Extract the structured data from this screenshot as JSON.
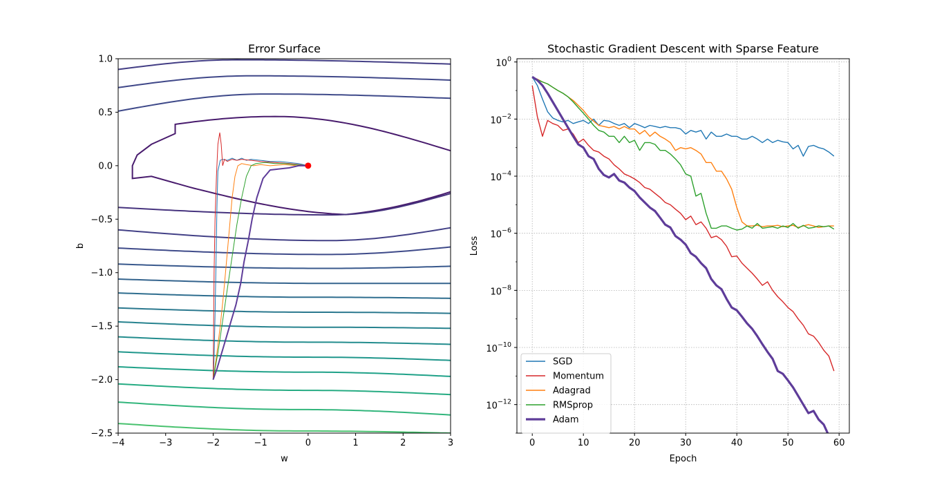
{
  "chart_data": [
    {
      "type": "contour",
      "title": "Error Surface",
      "xlabel": "w",
      "ylabel": "b",
      "xlim": [
        -4,
        3
      ],
      "ylim": [
        -2.5,
        1.0
      ],
      "xticks": [
        -4,
        -3,
        -2,
        -1,
        0,
        1,
        2,
        3
      ],
      "yticks": [
        -2.5,
        -2.0,
        -1.5,
        -1.0,
        -0.5,
        0.0,
        0.5,
        1.0
      ],
      "xtick_labels": [
        "−4",
        "−3",
        "−2",
        "−1",
        "0",
        "1",
        "2",
        "3"
      ],
      "ytick_labels": [
        "−2.5",
        "−2.0",
        "−1.5",
        "−1.0",
        "−0.5",
        "0.0",
        "0.5",
        "1.0"
      ],
      "minimum": {
        "w": 0.0,
        "b": 0.0,
        "color": "#ff0000"
      },
      "contours_upper": [
        {
          "b_left": 0.9,
          "b_peak": 0.99,
          "b_right": 0.95,
          "color": "#433e85"
        },
        {
          "b_left": 0.73,
          "b_peak": 0.84,
          "b_right": 0.8,
          "color": "#3f4788"
        },
        {
          "b_left": 0.51,
          "b_peak": 0.67,
          "b_right": 0.63,
          "color": "#3e4989"
        },
        {
          "b_left": 0.1,
          "b_peak": 0.46,
          "b_right": 0.14,
          "color": "#481b6d"
        }
      ],
      "contours_lower": [
        {
          "b_left": -0.39,
          "b_min": -0.46,
          "b_right": -0.26,
          "color": "#46337e"
        },
        {
          "b_left": -0.6,
          "b_min": -0.7,
          "b_right": -0.58,
          "color": "#424086"
        },
        {
          "b_left": -0.77,
          "b_min": -0.83,
          "b_right": -0.76,
          "color": "#3e4a89"
        },
        {
          "b_left": -0.92,
          "b_min": -0.96,
          "b_right": -0.94,
          "color": "#38588c"
        },
        {
          "b_left": -1.06,
          "b_min": -1.1,
          "b_right": -1.1,
          "color": "#33638d"
        },
        {
          "b_left": -1.19,
          "b_min": -1.23,
          "b_right": -1.24,
          "color": "#2e6d8e"
        },
        {
          "b_left": -1.33,
          "b_min": -1.37,
          "b_right": -1.38,
          "color": "#2a788e"
        },
        {
          "b_left": -1.46,
          "b_min": -1.51,
          "b_right": -1.52,
          "color": "#26828e"
        },
        {
          "b_left": -1.6,
          "b_min": -1.65,
          "b_right": -1.67,
          "color": "#228c8d"
        },
        {
          "b_left": -1.74,
          "b_min": -1.79,
          "b_right": -1.82,
          "color": "#1f968b"
        },
        {
          "b_left": -1.88,
          "b_min": -1.93,
          "b_right": -1.97,
          "color": "#1fa188"
        },
        {
          "b_left": -2.04,
          "b_min": -2.1,
          "b_right": -2.14,
          "color": "#25ab82"
        },
        {
          "b_left": -2.21,
          "b_min": -2.28,
          "b_right": -2.33,
          "color": "#31b57b"
        },
        {
          "b_left": -2.41,
          "b_min": -2.48,
          "b_right": -2.5,
          "color": "#48c16e"
        }
      ],
      "paths": [
        {
          "name": "SGD",
          "color": "#1f77b4",
          "points": [
            [
              -2.0,
              -2.0
            ],
            [
              -1.98,
              -1.8
            ],
            [
              -1.96,
              -1.4
            ],
            [
              -1.94,
              -0.9
            ],
            [
              -1.92,
              -0.4
            ],
            [
              -1.9,
              -0.05
            ],
            [
              -1.85,
              0.05
            ],
            [
              -1.8,
              0.06
            ],
            [
              -1.7,
              0.05
            ],
            [
              -1.6,
              0.07
            ],
            [
              -1.5,
              0.05
            ],
            [
              -1.4,
              0.07
            ],
            [
              -1.3,
              0.05
            ],
            [
              -1.2,
              0.06
            ],
            [
              -1.0,
              0.05
            ],
            [
              -0.8,
              0.04
            ],
            [
              -0.6,
              0.04
            ],
            [
              -0.4,
              0.03
            ],
            [
              -0.2,
              0.02
            ],
            [
              0.0,
              0.0
            ]
          ]
        },
        {
          "name": "Momentum",
          "color": "#d62728",
          "points": [
            [
              -2.0,
              -2.0
            ],
            [
              -1.99,
              -1.5
            ],
            [
              -1.98,
              -1.0
            ],
            [
              -1.96,
              -0.5
            ],
            [
              -1.93,
              -0.1
            ],
            [
              -1.9,
              0.2
            ],
            [
              -1.86,
              0.31
            ],
            [
              -1.83,
              0.2
            ],
            [
              -1.8,
              0.0
            ],
            [
              -1.76,
              0.06
            ],
            [
              -1.7,
              0.04
            ],
            [
              -1.6,
              0.06
            ],
            [
              -1.5,
              0.05
            ],
            [
              -1.4,
              0.06
            ],
            [
              -1.2,
              0.05
            ],
            [
              -1.0,
              0.04
            ],
            [
              -0.7,
              0.03
            ],
            [
              -0.4,
              0.02
            ],
            [
              -0.2,
              0.01
            ],
            [
              0.0,
              0.0
            ]
          ]
        },
        {
          "name": "Adagrad",
          "color": "#ff7f0e",
          "points": [
            [
              -2.0,
              -2.0
            ],
            [
              -1.92,
              -1.75
            ],
            [
              -1.85,
              -1.5
            ],
            [
              -1.78,
              -1.2
            ],
            [
              -1.72,
              -0.9
            ],
            [
              -1.66,
              -0.6
            ],
            [
              -1.6,
              -0.3
            ],
            [
              -1.54,
              -0.1
            ],
            [
              -1.48,
              0.0
            ],
            [
              -1.4,
              0.02
            ],
            [
              -1.3,
              0.01
            ],
            [
              -1.15,
              0.0
            ],
            [
              -1.0,
              0.01
            ],
            [
              -0.8,
              0.0
            ],
            [
              -0.5,
              0.01
            ],
            [
              -0.25,
              0.0
            ],
            [
              0.0,
              0.0
            ]
          ]
        },
        {
          "name": "RMSprop",
          "color": "#2ca02c",
          "points": [
            [
              -2.0,
              -2.0
            ],
            [
              -1.9,
              -1.75
            ],
            [
              -1.8,
              -1.45
            ],
            [
              -1.7,
              -1.15
            ],
            [
              -1.6,
              -0.85
            ],
            [
              -1.5,
              -0.55
            ],
            [
              -1.4,
              -0.3
            ],
            [
              -1.3,
              -0.1
            ],
            [
              -1.2,
              0.0
            ],
            [
              -1.1,
              0.02
            ],
            [
              -0.9,
              0.03
            ],
            [
              -0.7,
              0.02
            ],
            [
              -0.5,
              0.02
            ],
            [
              -0.3,
              0.01
            ],
            [
              0.0,
              0.0
            ]
          ]
        },
        {
          "name": "Adam",
          "color": "#5e3c99",
          "points": [
            [
              -2.0,
              -2.0
            ],
            [
              -1.92,
              -1.9
            ],
            [
              -1.82,
              -1.75
            ],
            [
              -1.72,
              -1.6
            ],
            [
              -1.62,
              -1.45
            ],
            [
              -1.52,
              -1.3
            ],
            [
              -1.42,
              -1.1
            ],
            [
              -1.35,
              -0.9
            ],
            [
              -1.26,
              -0.7
            ],
            [
              -1.18,
              -0.5
            ],
            [
              -1.08,
              -0.3
            ],
            [
              -0.95,
              -0.12
            ],
            [
              -0.8,
              -0.04
            ],
            [
              -0.6,
              -0.03
            ],
            [
              -0.4,
              -0.02
            ],
            [
              -0.2,
              0.0
            ],
            [
              0.0,
              0.0
            ]
          ]
        }
      ]
    },
    {
      "type": "line",
      "title": "Stochastic Gradient Descent with Sparse Feature",
      "xlabel": "Epoch",
      "ylabel": "Loss",
      "yscale": "log",
      "xlim": [
        -3,
        62
      ],
      "ylim": [
        1e-13,
        1.3
      ],
      "xticks": [
        0,
        10,
        20,
        30,
        40,
        50,
        60
      ],
      "xtick_labels": [
        "0",
        "10",
        "20",
        "30",
        "40",
        "50",
        "60"
      ],
      "ytick_exponents": [
        0,
        -2,
        -4,
        -6,
        -8,
        -10,
        -12
      ],
      "ytick_base": "10",
      "grid": true,
      "legend": "lower-left",
      "x": [
        0,
        1,
        2,
        3,
        4,
        5,
        6,
        7,
        8,
        9,
        10,
        11,
        12,
        13,
        14,
        15,
        16,
        17,
        18,
        19,
        20,
        21,
        22,
        23,
        24,
        25,
        26,
        27,
        28,
        29,
        30,
        31,
        32,
        33,
        34,
        35,
        36,
        37,
        38,
        39,
        40,
        41,
        42,
        43,
        44,
        45,
        46,
        47,
        48,
        49,
        50,
        51,
        52,
        53,
        54,
        55,
        56,
        57,
        58,
        59
      ],
      "series": [
        {
          "name": "SGD",
          "color": "#1f77b4",
          "width": 1.4,
          "values": [
            0.3,
            0.15,
            0.05,
            0.018,
            0.011,
            0.009,
            0.008,
            0.009,
            0.007,
            0.008,
            0.009,
            0.007,
            0.01,
            0.006,
            0.009,
            0.0085,
            0.007,
            0.006,
            0.007,
            0.005,
            0.007,
            0.006,
            0.005,
            0.006,
            0.0055,
            0.005,
            0.0055,
            0.005,
            0.005,
            0.0045,
            0.003,
            0.004,
            0.0035,
            0.004,
            0.002,
            0.0035,
            0.0025,
            0.0025,
            0.003,
            0.0025,
            0.0025,
            0.002,
            0.002,
            0.0025,
            0.002,
            0.0015,
            0.002,
            0.0015,
            0.0018,
            0.0016,
            0.0015,
            0.0009,
            0.0012,
            0.0005,
            0.0011,
            0.0012,
            0.001,
            0.0009,
            0.0007,
            0.0005
          ]
        },
        {
          "name": "Momentum",
          "color": "#d62728",
          "width": 1.4,
          "values": [
            0.15,
            0.012,
            0.0025,
            0.009,
            0.007,
            0.006,
            0.004,
            0.0045,
            0.003,
            0.0015,
            0.002,
            0.0012,
            0.0008,
            0.0007,
            0.0005,
            0.0004,
            0.00025,
            0.00018,
            0.00012,
            0.0001,
            8e-05,
            6e-05,
            4e-05,
            3.5e-05,
            2.5e-05,
            1.8e-05,
            1.2e-05,
            1e-05,
            7e-06,
            5e-06,
            3e-06,
            4e-06,
            2e-06,
            2.5e-06,
            1.5e-06,
            7e-07,
            8e-07,
            6e-07,
            3.5e-07,
            1.5e-07,
            1.6e-07,
            9e-08,
            6e-08,
            4e-08,
            2.5e-08,
            1.5e-08,
            2e-08,
            1e-08,
            6e-09,
            4e-09,
            2.5e-09,
            1.8e-09,
            1e-09,
            6e-10,
            3e-10,
            2.5e-10,
            1.5e-10,
            8e-11,
            5e-11,
            1.5e-11
          ]
        },
        {
          "name": "Adagrad",
          "color": "#ff7f0e",
          "width": 1.4,
          "values": [
            0.28,
            0.25,
            0.2,
            0.17,
            0.13,
            0.1,
            0.08,
            0.06,
            0.045,
            0.03,
            0.02,
            0.012,
            0.0085,
            0.006,
            0.0055,
            0.005,
            0.0055,
            0.0045,
            0.0055,
            0.0045,
            0.0045,
            0.003,
            0.004,
            0.0025,
            0.0035,
            0.0025,
            0.002,
            0.0015,
            0.0008,
            0.001,
            0.0009,
            0.001,
            0.0008,
            0.0006,
            0.0003,
            0.0003,
            0.00015,
            0.00015,
            8e-05,
            3.5e-05,
            8e-06,
            2.5e-06,
            1.8e-06,
            1.8e-06,
            1.9e-06,
            1.7e-06,
            1.8e-06,
            1.8e-06,
            1.9e-06,
            1.7e-06,
            1.8e-06,
            1.9e-06,
            1.6e-06,
            1.8e-06,
            2e-06,
            1.8e-06,
            1.6e-06,
            1.7e-06,
            1.8e-06,
            1.8e-06
          ]
        },
        {
          "name": "RMSprop",
          "color": "#2ca02c",
          "width": 1.4,
          "values": [
            0.28,
            0.24,
            0.2,
            0.17,
            0.13,
            0.1,
            0.08,
            0.06,
            0.04,
            0.025,
            0.016,
            0.01,
            0.006,
            0.004,
            0.0035,
            0.0025,
            0.0025,
            0.0015,
            0.0025,
            0.0015,
            0.0018,
            0.0008,
            0.0015,
            0.0015,
            0.0013,
            0.0008,
            0.0008,
            0.0006,
            0.0004,
            0.00025,
            0.00012,
            0.0001,
            2e-05,
            2.5e-05,
            5e-06,
            1.5e-06,
            1.5e-06,
            1.8e-06,
            1.8e-06,
            1.5e-06,
            1.3e-06,
            1.4e-06,
            1.8e-06,
            1.5e-06,
            2.2e-06,
            1.5e-06,
            1.6e-06,
            1.7e-06,
            1.5e-06,
            1.8e-06,
            1.6e-06,
            2.2e-06,
            1.5e-06,
            1.9e-06,
            1.5e-06,
            1.6e-06,
            1.8e-06,
            1.7e-06,
            1.8e-06,
            1.4e-06
          ]
        },
        {
          "name": "Adam",
          "color": "#5e3c99",
          "width": 3.2,
          "values": [
            0.3,
            0.23,
            0.15,
            0.08,
            0.04,
            0.02,
            0.01,
            0.005,
            0.0025,
            0.0013,
            0.001,
            0.0005,
            0.0004,
            0.00018,
            0.00011,
            9e-05,
            0.00012,
            7e-05,
            6e-05,
            4e-05,
            3e-05,
            1.8e-05,
            1.2e-05,
            8e-06,
            6e-06,
            3.5e-06,
            2e-06,
            1.6e-06,
            8e-07,
            6e-07,
            4e-07,
            2e-07,
            1.5e-07,
            9e-08,
            6e-08,
            2.5e-08,
            1.5e-08,
            1.1e-08,
            5e-09,
            2.5e-09,
            2e-09,
            1.2e-09,
            7e-10,
            4.5e-10,
            2.5e-10,
            1.3e-10,
            7e-11,
            4e-11,
            1.5e-11,
            1.2e-11,
            7e-12,
            4e-12,
            2e-12,
            1e-12,
            5e-13,
            6e-13,
            3e-13,
            2e-13,
            8e-14,
            3.5e-14
          ]
        }
      ]
    }
  ]
}
